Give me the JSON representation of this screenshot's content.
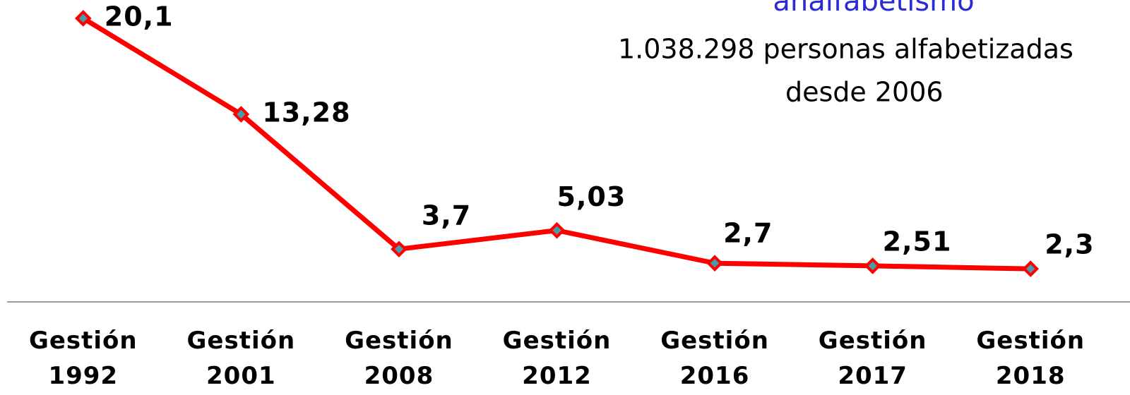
{
  "chart_data": {
    "type": "line",
    "annotations": [
      "analfabetismo",
      "1.038.298 personas alfabetizadas",
      "desde 2006"
    ],
    "categories": [
      "Gestión\n1992",
      "Gestión\n2001",
      "Gestión\n2008",
      "Gestión\n2012",
      "Gestión\n2016",
      "Gestión\n2017",
      "Gestión\n2018"
    ],
    "values": [
      20.1,
      13.28,
      3.7,
      5.03,
      2.7,
      2.51,
      2.3
    ],
    "value_labels": [
      "20,1",
      "13,28",
      "3,7",
      "5,03",
      "2,7",
      "2,51",
      "2,3"
    ],
    "color": "#ff0000",
    "ylim": [
      0,
      21.4
    ]
  }
}
